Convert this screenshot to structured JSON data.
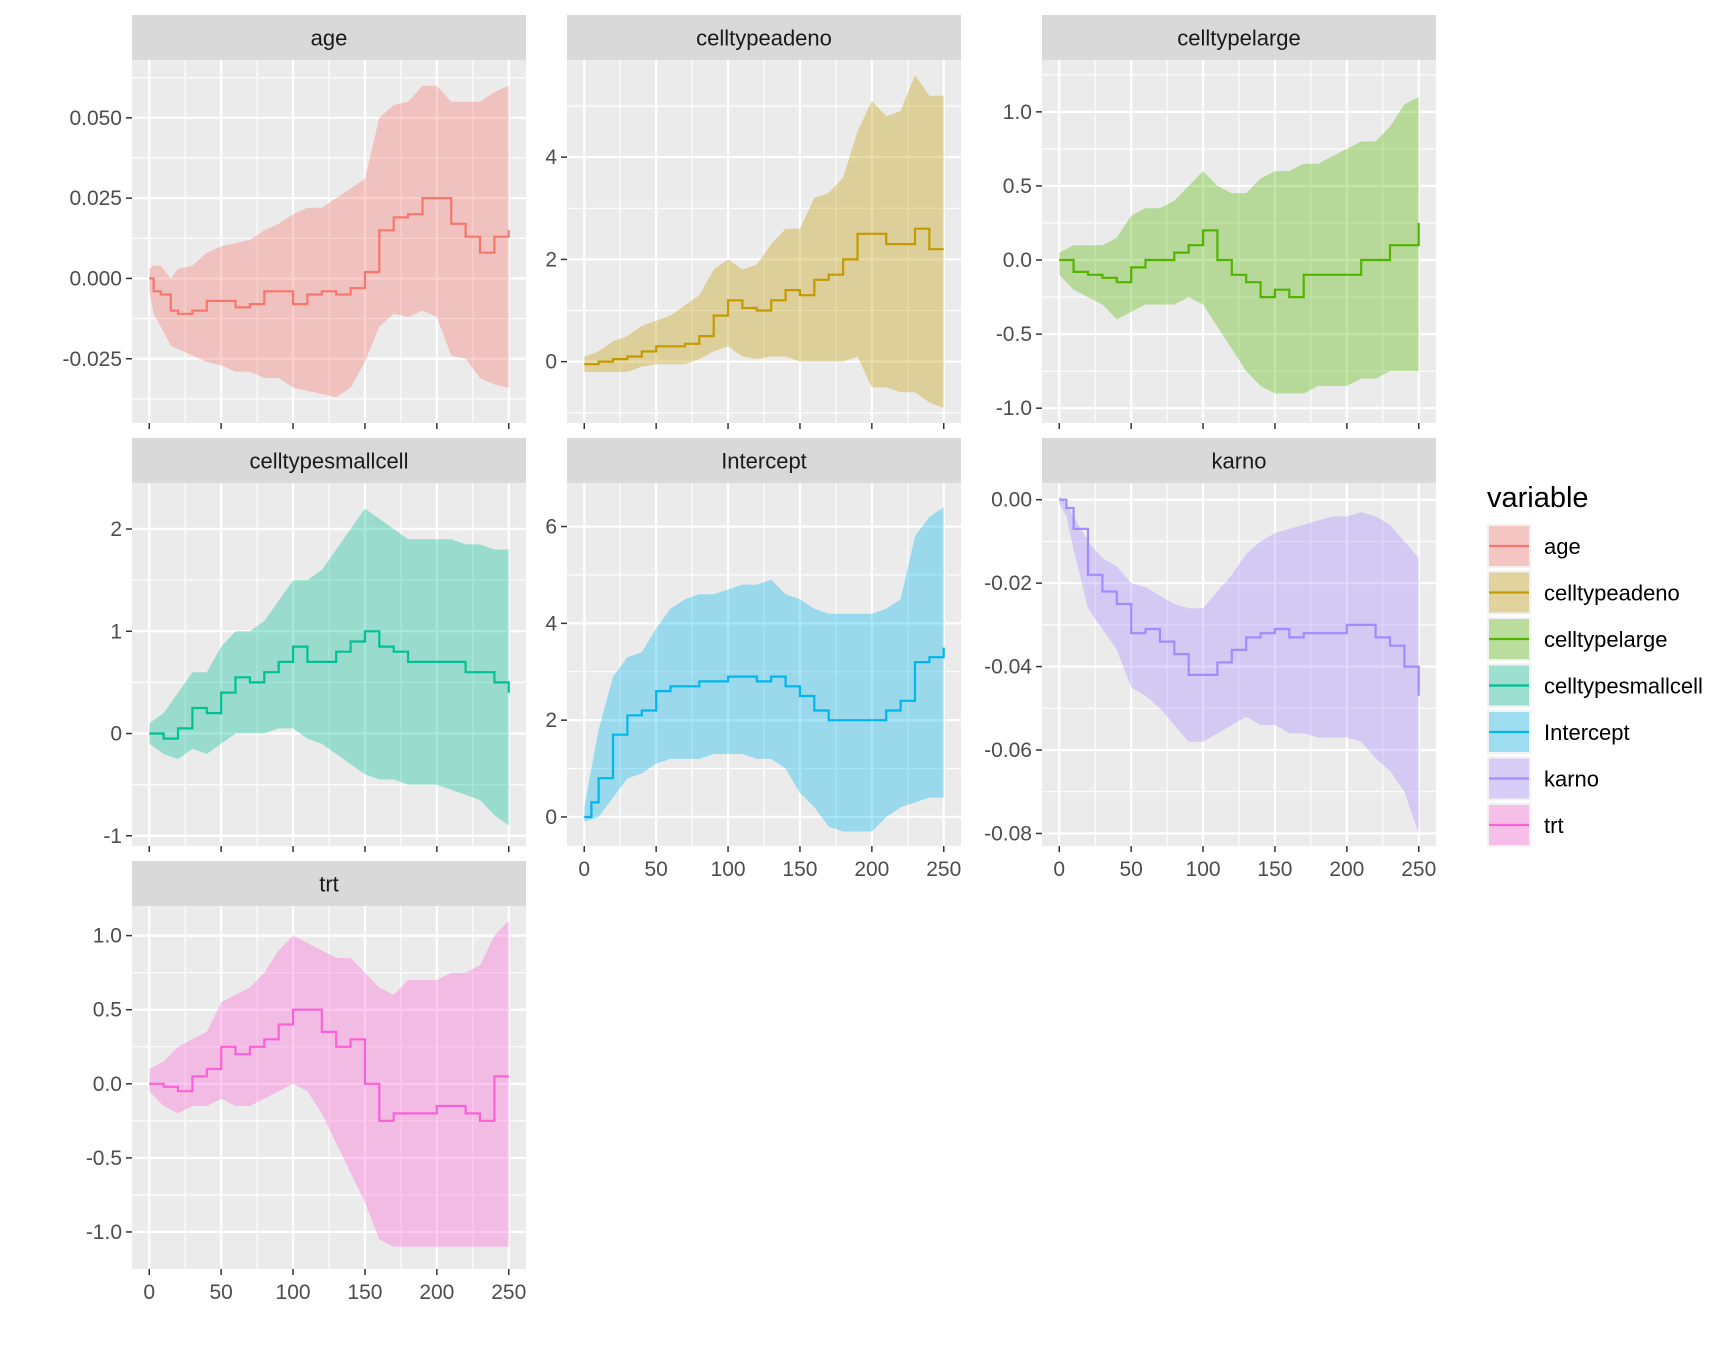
{
  "chart_data": {
    "type": "line",
    "x_ticks": [
      0,
      50,
      100,
      150,
      200,
      250
    ],
    "xlim": [
      -12,
      262
    ],
    "legend": {
      "title": "variable",
      "position": "right",
      "items": [
        {
          "label": "age",
          "color": "#F8766D"
        },
        {
          "label": "celltypeadeno",
          "color": "#C49A00"
        },
        {
          "label": "celltypelarge",
          "color": "#53B400"
        },
        {
          "label": "celltypesmallcell",
          "color": "#00C094"
        },
        {
          "label": "Intercept",
          "color": "#00B6EB"
        },
        {
          "label": "karno",
          "color": "#A58AFF"
        },
        {
          "label": "trt",
          "color": "#FB61D7"
        }
      ]
    },
    "panels": [
      {
        "title": "age",
        "color": "#F8766D",
        "ylim": [
          -0.045,
          0.068
        ],
        "y_ticks": [
          -0.025,
          0.0,
          0.025,
          0.05
        ],
        "y_tick_labels": [
          "-0.025",
          "0.000",
          "0.025",
          "0.050"
        ],
        "x": [
          0,
          3,
          8,
          15,
          20,
          30,
          40,
          50,
          60,
          70,
          80,
          90,
          100,
          110,
          120,
          130,
          140,
          150,
          160,
          170,
          180,
          190,
          200,
          210,
          220,
          230,
          240,
          250
        ],
        "y": [
          0.0,
          -0.004,
          -0.005,
          -0.01,
          -0.011,
          -0.01,
          -0.007,
          -0.007,
          -0.009,
          -0.008,
          -0.004,
          -0.004,
          -0.008,
          -0.005,
          -0.004,
          -0.005,
          -0.003,
          0.002,
          0.015,
          0.019,
          0.02,
          0.025,
          0.025,
          0.017,
          0.013,
          0.008,
          0.013,
          0.015
        ],
        "lower": [
          -0.004,
          -0.011,
          -0.015,
          -0.021,
          -0.022,
          -0.024,
          -0.026,
          -0.027,
          -0.029,
          -0.029,
          -0.031,
          -0.031,
          -0.034,
          -0.035,
          -0.036,
          -0.037,
          -0.034,
          -0.026,
          -0.015,
          -0.011,
          -0.012,
          -0.01,
          -0.012,
          -0.024,
          -0.025,
          -0.031,
          -0.033,
          -0.034
        ],
        "upper": [
          0.003,
          0.004,
          0.004,
          0.0,
          0.003,
          0.004,
          0.008,
          0.01,
          0.011,
          0.012,
          0.015,
          0.017,
          0.02,
          0.022,
          0.022,
          0.025,
          0.028,
          0.031,
          0.05,
          0.054,
          0.055,
          0.06,
          0.06,
          0.055,
          0.055,
          0.055,
          0.058,
          0.06
        ]
      },
      {
        "title": "celltypeadeno",
        "color": "#C49A00",
        "ylim": [
          -1.2,
          5.9
        ],
        "y_ticks": [
          0,
          2,
          4
        ],
        "y_tick_labels": [
          "0",
          "2",
          "4"
        ],
        "x": [
          0,
          10,
          20,
          30,
          40,
          50,
          60,
          70,
          80,
          90,
          100,
          110,
          120,
          130,
          140,
          150,
          160,
          170,
          180,
          190,
          200,
          210,
          220,
          230,
          240,
          250
        ],
        "y": [
          -0.05,
          0.0,
          0.05,
          0.1,
          0.2,
          0.3,
          0.3,
          0.35,
          0.5,
          0.9,
          1.2,
          1.05,
          1.0,
          1.2,
          1.4,
          1.3,
          1.6,
          1.7,
          2.0,
          2.5,
          2.5,
          2.3,
          2.3,
          2.6,
          2.2,
          2.2
        ],
        "lower": [
          -0.2,
          -0.2,
          -0.2,
          -0.2,
          -0.1,
          -0.05,
          -0.05,
          -0.05,
          0.05,
          0.2,
          0.3,
          0.1,
          0.05,
          0.1,
          0.1,
          0.0,
          0.0,
          0.0,
          0.0,
          0.1,
          -0.5,
          -0.5,
          -0.6,
          -0.6,
          -0.8,
          -0.9
        ],
        "upper": [
          0.1,
          0.2,
          0.4,
          0.5,
          0.7,
          0.8,
          0.9,
          1.1,
          1.3,
          1.8,
          2.0,
          1.8,
          1.9,
          2.3,
          2.6,
          2.6,
          3.2,
          3.3,
          3.6,
          4.5,
          5.1,
          4.8,
          4.9,
          5.6,
          5.2,
          5.2
        ]
      },
      {
        "title": "celltypelarge",
        "color": "#53B400",
        "ylim": [
          -1.1,
          1.35
        ],
        "y_ticks": [
          -1.0,
          -0.5,
          0.0,
          0.5,
          1.0
        ],
        "y_tick_labels": [
          "-1.0",
          "-0.5",
          "0.0",
          "0.5",
          "1.0"
        ],
        "x": [
          0,
          10,
          20,
          30,
          40,
          50,
          60,
          70,
          80,
          90,
          100,
          110,
          120,
          130,
          140,
          150,
          160,
          170,
          180,
          190,
          200,
          210,
          220,
          230,
          240,
          250
        ],
        "y": [
          0.0,
          -0.08,
          -0.1,
          -0.12,
          -0.15,
          -0.05,
          0.0,
          0.0,
          0.05,
          0.1,
          0.2,
          0.0,
          -0.1,
          -0.15,
          -0.25,
          -0.2,
          -0.25,
          -0.1,
          -0.1,
          -0.1,
          -0.1,
          0.0,
          0.0,
          0.1,
          0.1,
          0.25
        ],
        "lower": [
          -0.1,
          -0.2,
          -0.25,
          -0.3,
          -0.4,
          -0.35,
          -0.3,
          -0.3,
          -0.3,
          -0.25,
          -0.3,
          -0.45,
          -0.6,
          -0.75,
          -0.85,
          -0.9,
          -0.9,
          -0.9,
          -0.85,
          -0.85,
          -0.85,
          -0.8,
          -0.8,
          -0.75,
          -0.75,
          -0.75
        ],
        "upper": [
          0.05,
          0.1,
          0.1,
          0.1,
          0.15,
          0.3,
          0.35,
          0.35,
          0.4,
          0.5,
          0.6,
          0.5,
          0.45,
          0.45,
          0.55,
          0.6,
          0.6,
          0.65,
          0.65,
          0.7,
          0.75,
          0.8,
          0.8,
          0.9,
          1.05,
          1.1
        ]
      },
      {
        "title": "celltypesmallcell",
        "color": "#00C094",
        "ylim": [
          -1.1,
          2.45
        ],
        "y_ticks": [
          -1,
          0,
          1,
          2
        ],
        "y_tick_labels": [
          "-1",
          "0",
          "1",
          "2"
        ],
        "x": [
          0,
          10,
          20,
          30,
          40,
          50,
          60,
          70,
          80,
          90,
          100,
          110,
          120,
          130,
          140,
          150,
          160,
          170,
          180,
          190,
          200,
          210,
          220,
          230,
          240,
          250
        ],
        "y": [
          0.0,
          -0.05,
          0.05,
          0.25,
          0.2,
          0.4,
          0.55,
          0.5,
          0.6,
          0.7,
          0.85,
          0.7,
          0.7,
          0.8,
          0.9,
          1.0,
          0.85,
          0.8,
          0.7,
          0.7,
          0.7,
          0.7,
          0.6,
          0.6,
          0.5,
          0.4
        ],
        "lower": [
          -0.1,
          -0.2,
          -0.25,
          -0.15,
          -0.2,
          -0.1,
          0.0,
          0.0,
          0.0,
          0.05,
          0.05,
          -0.05,
          -0.1,
          -0.2,
          -0.3,
          -0.4,
          -0.45,
          -0.45,
          -0.5,
          -0.5,
          -0.5,
          -0.55,
          -0.6,
          -0.65,
          -0.8,
          -0.9
        ],
        "upper": [
          0.1,
          0.2,
          0.4,
          0.6,
          0.6,
          0.85,
          1.0,
          1.0,
          1.1,
          1.3,
          1.5,
          1.5,
          1.6,
          1.8,
          2.0,
          2.2,
          2.1,
          2.0,
          1.9,
          1.9,
          1.9,
          1.9,
          1.85,
          1.85,
          1.8,
          1.8
        ]
      },
      {
        "title": "Intercept",
        "color": "#00B6EB",
        "ylim": [
          -0.6,
          6.9
        ],
        "y_ticks": [
          0,
          2,
          4,
          6
        ],
        "y_tick_labels": [
          "0",
          "2",
          "4",
          "6"
        ],
        "x": [
          0,
          5,
          10,
          20,
          30,
          40,
          50,
          60,
          70,
          80,
          90,
          100,
          110,
          120,
          130,
          140,
          150,
          160,
          170,
          180,
          190,
          200,
          210,
          220,
          230,
          240,
          250
        ],
        "y": [
          0.0,
          0.3,
          0.8,
          1.7,
          2.1,
          2.2,
          2.6,
          2.7,
          2.7,
          2.8,
          2.8,
          2.9,
          2.9,
          2.8,
          2.9,
          2.7,
          2.5,
          2.2,
          2.0,
          2.0,
          2.0,
          2.0,
          2.2,
          2.4,
          3.2,
          3.3,
          3.5
        ],
        "lower": [
          -0.1,
          -0.05,
          0.0,
          0.4,
          0.8,
          0.9,
          1.1,
          1.2,
          1.2,
          1.2,
          1.3,
          1.3,
          1.3,
          1.2,
          1.2,
          1.0,
          0.5,
          0.2,
          -0.2,
          -0.3,
          -0.3,
          -0.3,
          0.0,
          0.2,
          0.3,
          0.4,
          0.4
        ],
        "upper": [
          0.2,
          1.0,
          1.8,
          2.9,
          3.3,
          3.4,
          3.9,
          4.3,
          4.5,
          4.6,
          4.6,
          4.7,
          4.8,
          4.8,
          4.9,
          4.6,
          4.5,
          4.3,
          4.2,
          4.2,
          4.2,
          4.2,
          4.3,
          4.5,
          5.8,
          6.2,
          6.4
        ]
      },
      {
        "title": "karno",
        "color": "#A58AFF",
        "ylim": [
          -0.083,
          0.004
        ],
        "y_ticks": [
          -0.08,
          -0.06,
          -0.04,
          -0.02,
          0.0
        ],
        "y_tick_labels": [
          "-0.08",
          "-0.06",
          "-0.04",
          "-0.02",
          "0.00"
        ],
        "x": [
          0,
          5,
          10,
          20,
          30,
          40,
          50,
          60,
          70,
          80,
          90,
          100,
          110,
          120,
          130,
          140,
          150,
          160,
          170,
          180,
          190,
          200,
          210,
          220,
          230,
          240,
          250
        ],
        "y": [
          0.0,
          -0.002,
          -0.007,
          -0.018,
          -0.022,
          -0.025,
          -0.032,
          -0.031,
          -0.034,
          -0.037,
          -0.042,
          -0.042,
          -0.039,
          -0.036,
          -0.033,
          -0.032,
          -0.031,
          -0.033,
          -0.032,
          -0.032,
          -0.032,
          -0.03,
          -0.03,
          -0.033,
          -0.035,
          -0.04,
          -0.047
        ],
        "lower": [
          -0.001,
          -0.004,
          -0.012,
          -0.026,
          -0.031,
          -0.036,
          -0.045,
          -0.047,
          -0.05,
          -0.054,
          -0.058,
          -0.058,
          -0.056,
          -0.054,
          -0.052,
          -0.054,
          -0.054,
          -0.056,
          -0.056,
          -0.057,
          -0.057,
          -0.057,
          -0.058,
          -0.062,
          -0.065,
          -0.07,
          -0.08
        ],
        "upper": [
          0.001,
          -0.001,
          -0.004,
          -0.01,
          -0.014,
          -0.016,
          -0.02,
          -0.021,
          -0.023,
          -0.025,
          -0.026,
          -0.026,
          -0.022,
          -0.018,
          -0.013,
          -0.01,
          -0.008,
          -0.007,
          -0.006,
          -0.005,
          -0.004,
          -0.004,
          -0.003,
          -0.004,
          -0.006,
          -0.01,
          -0.014
        ]
      },
      {
        "title": "trt",
        "color": "#FB61D7",
        "ylim": [
          -1.25,
          1.2
        ],
        "y_ticks": [
          -1.0,
          -0.5,
          0.0,
          0.5,
          1.0
        ],
        "y_tick_labels": [
          "-1.0",
          "-0.5",
          "0.0",
          "0.5",
          "1.0"
        ],
        "x": [
          0,
          10,
          20,
          30,
          40,
          50,
          60,
          70,
          80,
          90,
          100,
          110,
          120,
          130,
          140,
          150,
          160,
          170,
          180,
          190,
          200,
          210,
          220,
          230,
          240,
          250
        ],
        "y": [
          0.0,
          -0.02,
          -0.05,
          0.05,
          0.1,
          0.25,
          0.2,
          0.25,
          0.3,
          0.4,
          0.5,
          0.5,
          0.35,
          0.25,
          0.3,
          0.0,
          -0.25,
          -0.2,
          -0.2,
          -0.2,
          -0.15,
          -0.15,
          -0.2,
          -0.25,
          0.05,
          0.05
        ],
        "lower": [
          -0.05,
          -0.15,
          -0.2,
          -0.15,
          -0.15,
          -0.1,
          -0.15,
          -0.15,
          -0.1,
          -0.05,
          0.0,
          -0.05,
          -0.2,
          -0.4,
          -0.6,
          -0.8,
          -1.05,
          -1.1,
          -1.1,
          -1.1,
          -1.1,
          -1.1,
          -1.1,
          -1.1,
          -1.1,
          -1.1
        ],
        "upper": [
          0.1,
          0.15,
          0.25,
          0.3,
          0.35,
          0.55,
          0.6,
          0.65,
          0.75,
          0.9,
          1.0,
          0.95,
          0.9,
          0.85,
          0.85,
          0.75,
          0.65,
          0.6,
          0.7,
          0.7,
          0.7,
          0.75,
          0.75,
          0.8,
          1.0,
          1.1
        ]
      }
    ]
  }
}
